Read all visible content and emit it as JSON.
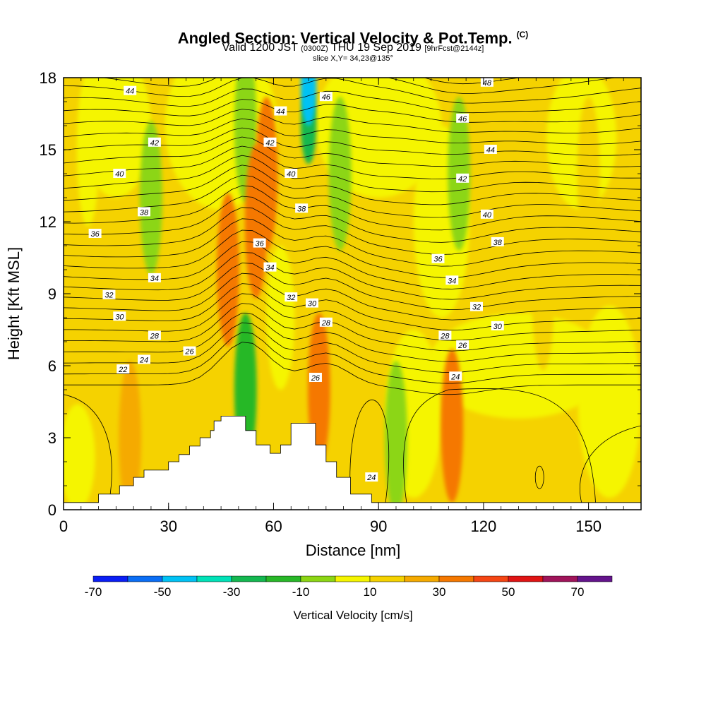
{
  "title": "Angled Section: Vertical Velocity & Pot.Temp.",
  "title_units": "(C)",
  "subtitle": {
    "valid": "Valid 1200 JST",
    "utc": "(0300Z)",
    "date": "THU 19 Sep 2019",
    "forecast": "[9hrFcst@2144z]"
  },
  "slice_label": "slice X,Y= 34,23@135°",
  "chart_data": {
    "type": "heatmap",
    "xlabel": "Distance [nm]",
    "ylabel": "Height [Kft MSL]",
    "xlim": [
      0,
      165
    ],
    "ylim": [
      0,
      18
    ],
    "x_ticks": [
      0,
      30,
      60,
      90,
      120,
      150
    ],
    "y_ticks": [
      0,
      3,
      6,
      9,
      12,
      15,
      18
    ],
    "grid": false,
    "colorbar": {
      "title": "Vertical Velocity [cm/s]",
      "tick_labels": [
        "-70",
        "-50",
        "-30",
        "-10",
        "10",
        "30",
        "50",
        "70"
      ],
      "colors": [
        "#0a1ef5",
        "#0a6ef5",
        "#00c2f5",
        "#00e2b8",
        "#14b850",
        "#28b828",
        "#8cd614",
        "#f5f500",
        "#f5d200",
        "#f5aa00",
        "#f57800",
        "#f54614",
        "#e01414",
        "#a0145a",
        "#64148c"
      ]
    },
    "terrain_top_kft": [
      [
        0,
        0.3
      ],
      [
        10,
        0.3
      ],
      [
        10,
        0.65
      ],
      [
        16,
        0.65
      ],
      [
        16,
        1.0
      ],
      [
        20,
        1.0
      ],
      [
        20,
        1.35
      ],
      [
        23,
        1.35
      ],
      [
        23,
        1.65
      ],
      [
        30,
        1.65
      ],
      [
        30,
        2.0
      ],
      [
        33,
        2.0
      ],
      [
        33,
        2.3
      ],
      [
        36,
        2.3
      ],
      [
        36,
        2.65
      ],
      [
        39,
        2.65
      ],
      [
        39,
        3.0
      ],
      [
        42,
        3.0
      ],
      [
        42,
        3.3
      ],
      [
        43,
        3.3
      ],
      [
        43,
        3.7
      ],
      [
        45,
        3.7
      ],
      [
        45,
        3.9
      ],
      [
        52,
        3.9
      ],
      [
        52,
        3.3
      ],
      [
        55,
        3.3
      ],
      [
        55,
        2.7
      ],
      [
        59,
        2.7
      ],
      [
        59,
        2.35
      ],
      [
        62,
        2.35
      ],
      [
        62,
        2.7
      ],
      [
        65,
        2.7
      ],
      [
        65,
        3.6
      ],
      [
        72,
        3.6
      ],
      [
        72,
        2.7
      ],
      [
        75,
        2.7
      ],
      [
        75,
        2.0
      ],
      [
        78,
        2.0
      ],
      [
        78,
        1.35
      ],
      [
        82,
        1.35
      ],
      [
        82,
        0.65
      ],
      [
        88,
        0.65
      ],
      [
        88,
        0.3
      ],
      [
        165,
        0.3
      ]
    ],
    "velocity_features_cm_s": [
      {
        "x": 7,
        "y": 15,
        "value": -5
      },
      {
        "x": 25,
        "y": 13,
        "value": -12
      },
      {
        "x": 52,
        "y": 16,
        "value": -15
      },
      {
        "x": 55,
        "y": 12,
        "value": 25
      },
      {
        "x": 47,
        "y": 10,
        "value": 22
      },
      {
        "x": 70,
        "y": 16,
        "value": -35
      },
      {
        "x": 70,
        "y": 17.6,
        "value": -55
      },
      {
        "x": 79,
        "y": 14,
        "value": -15
      },
      {
        "x": 73,
        "y": 5,
        "value": 22
      },
      {
        "x": 58,
        "y": 14,
        "value": 20
      },
      {
        "x": 113,
        "y": 14,
        "value": -15
      },
      {
        "x": 95,
        "y": 3,
        "value": -15
      },
      {
        "x": 111,
        "y": 3.5,
        "value": 20
      },
      {
        "x": 19,
        "y": 3,
        "value": 18
      },
      {
        "x": 137,
        "y": 9,
        "value": 8
      },
      {
        "x": 52,
        "y": 5,
        "value": -25
      },
      {
        "x": 150,
        "y": 14,
        "value": 5
      }
    ],
    "theta_labels": [
      {
        "value": "44",
        "x": 19,
        "y": 17.45
      },
      {
        "value": "42",
        "x": 26,
        "y": 15.3
      },
      {
        "value": "40",
        "x": 16,
        "y": 14.0
      },
      {
        "value": "38",
        "x": 23,
        "y": 12.4
      },
      {
        "value": "36",
        "x": 9,
        "y": 11.5
      },
      {
        "value": "34",
        "x": 26,
        "y": 9.65
      },
      {
        "value": "32",
        "x": 13,
        "y": 8.95
      },
      {
        "value": "30",
        "x": 16,
        "y": 8.05
      },
      {
        "value": "28",
        "x": 26,
        "y": 7.25
      },
      {
        "value": "26",
        "x": 36,
        "y": 6.6
      },
      {
        "value": "24",
        "x": 23,
        "y": 6.25
      },
      {
        "value": "22",
        "x": 17,
        "y": 5.85
      },
      {
        "value": "44",
        "x": 62,
        "y": 16.6
      },
      {
        "value": "42",
        "x": 59,
        "y": 15.3
      },
      {
        "value": "40",
        "x": 65,
        "y": 14.0
      },
      {
        "value": "38",
        "x": 68,
        "y": 12.55
      },
      {
        "value": "36",
        "x": 56,
        "y": 11.1
      },
      {
        "value": "34",
        "x": 59,
        "y": 10.1
      },
      {
        "value": "32",
        "x": 65,
        "y": 8.85
      },
      {
        "value": "30",
        "x": 71,
        "y": 8.6
      },
      {
        "value": "28",
        "x": 75,
        "y": 7.8
      },
      {
        "value": "26",
        "x": 72,
        "y": 5.5
      },
      {
        "value": "46",
        "x": 75,
        "y": 17.2
      },
      {
        "value": "48",
        "x": 121,
        "y": 17.8
      },
      {
        "value": "46",
        "x": 114,
        "y": 16.3
      },
      {
        "value": "44",
        "x": 122,
        "y": 15.0
      },
      {
        "value": "42",
        "x": 114,
        "y": 13.8
      },
      {
        "value": "40",
        "x": 121,
        "y": 12.3
      },
      {
        "value": "38",
        "x": 124,
        "y": 11.15
      },
      {
        "value": "36",
        "x": 107,
        "y": 10.45
      },
      {
        "value": "34",
        "x": 111,
        "y": 9.55
      },
      {
        "value": "32",
        "x": 118,
        "y": 8.45
      },
      {
        "value": "30",
        "x": 124,
        "y": 7.65
      },
      {
        "value": "28",
        "x": 109,
        "y": 7.25
      },
      {
        "value": "26",
        "x": 114,
        "y": 6.85
      },
      {
        "value": "24",
        "x": 112,
        "y": 5.55
      },
      {
        "value": "24",
        "x": 88,
        "y": 1.35
      }
    ]
  }
}
